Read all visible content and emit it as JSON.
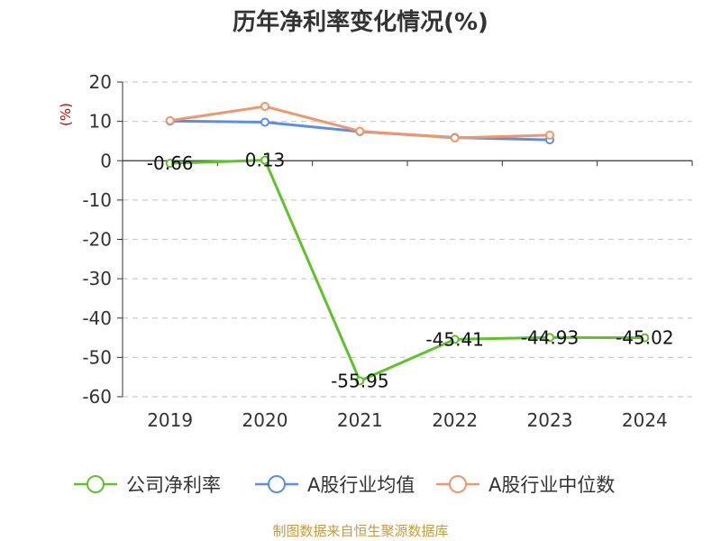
{
  "source_note": "制图数据来自恒生聚源数据库",
  "colors": {
    "title": "#333333",
    "axis": "#333333",
    "grid": "#cccccc",
    "unit": "#cc0000",
    "source": "#c89a3c"
  },
  "chart_data": {
    "type": "line",
    "title": "历年净利率变化情况(%)",
    "ylabel": "(%)",
    "xlabel": "",
    "categories": [
      "2019",
      "2020",
      "2021",
      "2022",
      "2023",
      "2024"
    ],
    "ylim": [
      -60,
      20
    ],
    "yticks": [
      20,
      10,
      0,
      -10,
      -20,
      -30,
      -40,
      -50,
      -60
    ],
    "grid": true,
    "legend_position": "bottom",
    "series": [
      {
        "name": "公司净利率",
        "color": "#5ec229",
        "values": [
          -0.66,
          0.13,
          -55.95,
          -45.41,
          -44.93,
          -45.02
        ],
        "labels": [
          "-0.66",
          "0.13",
          "-55.95",
          "-45.41",
          "-44.93",
          "-45.02"
        ],
        "show_labels": true
      },
      {
        "name": "A股行业均值",
        "color": "#5b8ee6",
        "values": [
          10.1,
          9.8,
          7.4,
          5.9,
          5.3,
          null
        ],
        "show_labels": false
      },
      {
        "name": "A股行业中位数",
        "color": "#f29568",
        "values": [
          10.2,
          13.8,
          7.5,
          5.8,
          6.5,
          null
        ],
        "show_labels": false
      }
    ]
  }
}
